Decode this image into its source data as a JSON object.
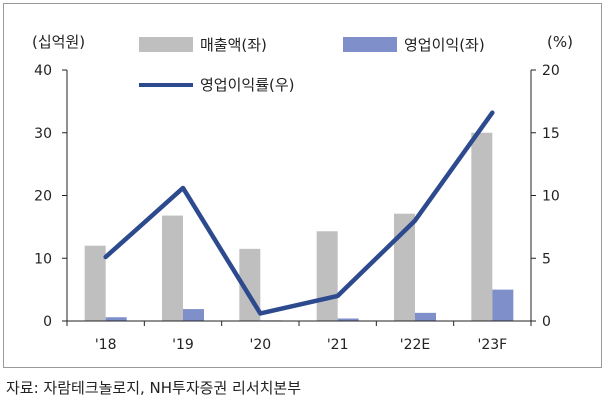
{
  "chart_data": {
    "type": "bar",
    "categories": [
      "'18",
      "'19",
      "'20",
      "'21",
      "'22E",
      "'23F"
    ],
    "series": [
      {
        "name": "매출액(좌)",
        "kind": "bar",
        "axis": "left",
        "values": [
          12.0,
          16.8,
          11.5,
          14.3,
          17.1,
          30.0
        ],
        "color": "#bfbfbf"
      },
      {
        "name": "영업이익(좌)",
        "kind": "bar",
        "axis": "left",
        "values": [
          0.6,
          1.9,
          0.1,
          0.4,
          1.3,
          5.0
        ],
        "color": "#7f8fca"
      },
      {
        "name": "영업이익률(우)",
        "kind": "line",
        "axis": "right",
        "values": [
          5.1,
          10.6,
          0.6,
          2.0,
          8.0,
          16.6
        ],
        "color": "#2e4a8e"
      }
    ],
    "left_axis": {
      "label": "(십억원)",
      "ylim": [
        0,
        40
      ],
      "ticks": [
        "0",
        "10",
        "20",
        "30",
        "40"
      ]
    },
    "right_axis": {
      "label": "(%)",
      "ylim": [
        0,
        20
      ],
      "ticks": [
        "0",
        "5",
        "10",
        "15",
        "20"
      ]
    },
    "legend_placement": "top",
    "grid": false
  },
  "source": "자료: 자람테크놀로지, NH투자증권 리서치본부"
}
